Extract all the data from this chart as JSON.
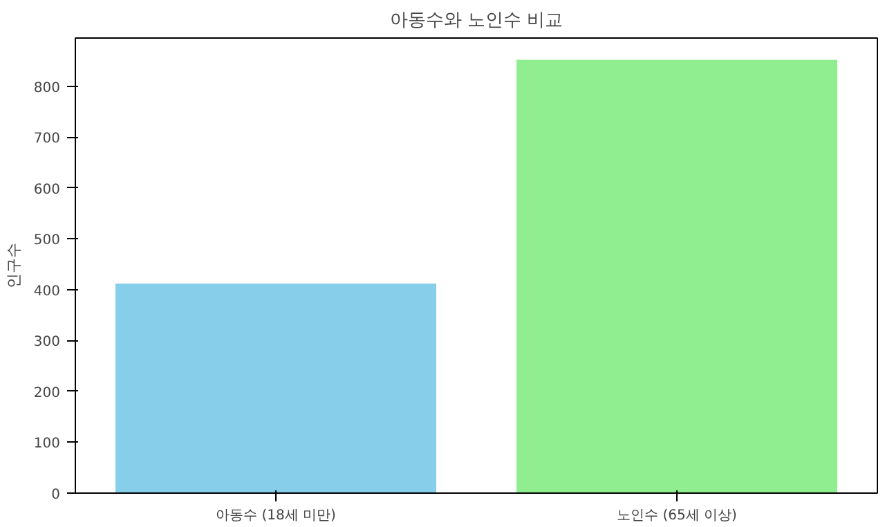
{
  "chart_data": {
    "type": "bar",
    "title": "아동수와 노인수 비교",
    "ylabel": "인구수",
    "categories": [
      "아동수 (18세 미만)",
      "노인수 (65세 이상)"
    ],
    "values": [
      412,
      852
    ],
    "colors": [
      "#87ceeb",
      "#90ee90"
    ],
    "ylim": [
      0,
      895
    ],
    "yticks": [
      0,
      100,
      200,
      300,
      400,
      500,
      600,
      700,
      800
    ],
    "grid": false
  }
}
